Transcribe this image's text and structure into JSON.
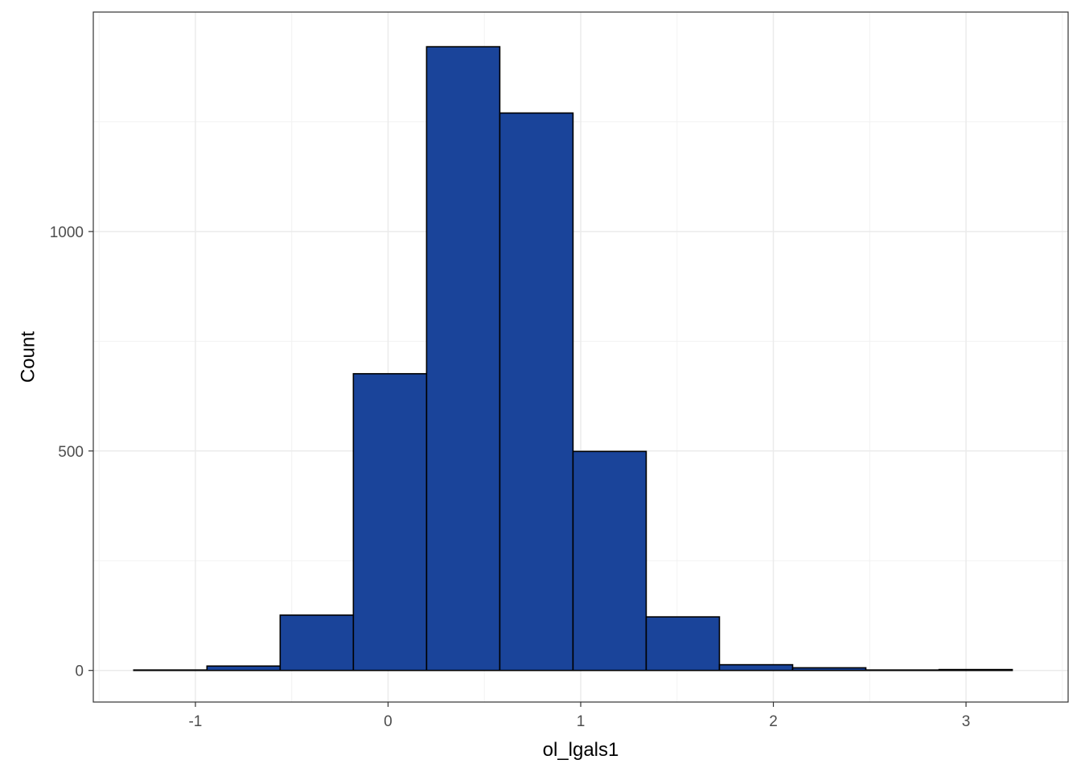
{
  "chart_data": {
    "type": "bar",
    "subtype": "histogram",
    "xlabel": "ol_lgals1",
    "ylabel": "Count",
    "xlim": [
      -1.53,
      3.53
    ],
    "ylim": [
      -72,
      1500
    ],
    "x_ticks": [
      -1,
      0,
      1,
      2,
      3
    ],
    "x_tick_labels": [
      "-1",
      "0",
      "1",
      "2",
      "3"
    ],
    "y_ticks": [
      0,
      500,
      1000
    ],
    "y_tick_labels": [
      "0",
      "500",
      "1000"
    ],
    "grid": true,
    "bin_width": 0.38,
    "bins": [
      {
        "x0": -1.32,
        "x1": -0.94,
        "count": 1
      },
      {
        "x0": -0.94,
        "x1": -0.56,
        "count": 10
      },
      {
        "x0": -0.56,
        "x1": -0.18,
        "count": 126
      },
      {
        "x0": -0.18,
        "x1": 0.2,
        "count": 676
      },
      {
        "x0": 0.2,
        "x1": 0.58,
        "count": 1421
      },
      {
        "x0": 0.58,
        "x1": 0.96,
        "count": 1270
      },
      {
        "x0": 0.96,
        "x1": 1.34,
        "count": 499
      },
      {
        "x0": 1.34,
        "x1": 1.72,
        "count": 122
      },
      {
        "x0": 1.72,
        "x1": 2.1,
        "count": 13
      },
      {
        "x0": 2.1,
        "x1": 2.48,
        "count": 6
      },
      {
        "x0": 2.48,
        "x1": 2.86,
        "count": 1
      },
      {
        "x0": 2.86,
        "x1": 3.24,
        "count": 2
      }
    ],
    "colors": {
      "bar_fill": "#1A449A",
      "bar_stroke": "#000000",
      "grid_major": "#EBEBEB",
      "grid_minor": "#F2F2F2",
      "panel_border": "#333333"
    }
  }
}
